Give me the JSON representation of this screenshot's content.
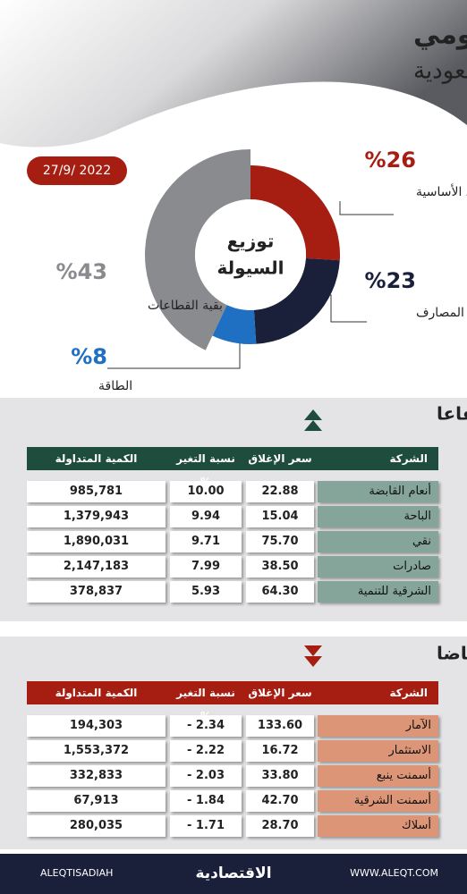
{
  "header": {
    "title": "الأداء اليومي",
    "subtitle": "لسوق الأسهم السعودية",
    "date": "27/9/ 2022"
  },
  "chart_data": {
    "type": "pie",
    "title_lines": [
      "توزيع",
      "السيولة"
    ],
    "categories": [
      "المواد الأساسية",
      "المصارف",
      "الطاقة",
      "بقية القطاعات"
    ],
    "values": [
      26,
      23,
      8,
      43
    ],
    "value_labels": [
      "%26",
      "%23",
      "%8",
      "%43"
    ],
    "colors": [
      "#a61d11",
      "#1a1f3a",
      "#1f6fc2",
      "#8a8b8f"
    ]
  },
  "gainers": {
    "title": "الأكثر ارتفاعا",
    "columns": [
      "الشركة",
      "سعر الإغلاق",
      "نسبة التغير %",
      "الكمية المتداولة"
    ],
    "rows": [
      [
        "أنعام القابضة",
        "22.88",
        "10.00",
        "985,781"
      ],
      [
        "الباحة",
        "15.04",
        "9.94",
        "1,379,943"
      ],
      [
        "نقي",
        "75.70",
        "9.71",
        "1,890,031"
      ],
      [
        "صادرات",
        "38.50",
        "7.99",
        "2,147,183"
      ],
      [
        "الشرقية للتنمية",
        "64.30",
        "5.93",
        "378,837"
      ]
    ]
  },
  "losers": {
    "title": "الأكثر انخفاضا",
    "columns": [
      "الشركة",
      "سعر الإغلاق",
      "نسبة التغير %",
      "الكمية المتداولة"
    ],
    "rows": [
      [
        "الآمار",
        "133.60",
        "- 2.34",
        "194,303"
      ],
      [
        "الاستثمار",
        "16.72",
        "- 2.22",
        "1,553,372"
      ],
      [
        "أسمنت ينبع",
        "33.80",
        "- 2.03",
        "332,833"
      ],
      [
        "أسمنت الشرقية",
        "42.70",
        "- 1.84",
        "67,913"
      ],
      [
        "أسلاك",
        "28.70",
        "- 1.71",
        "280,035"
      ]
    ]
  },
  "footer": {
    "handle": "ALEQTISADIAH",
    "brand": "الاقتصادية",
    "url": "WWW.ALEQT.COM"
  }
}
